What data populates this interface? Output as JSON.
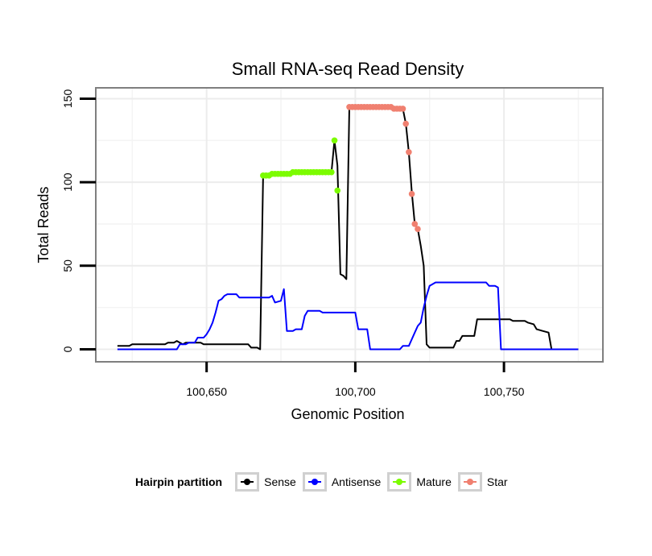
{
  "chart_data": {
    "type": "line",
    "title": "Small RNA-seq Read Density",
    "xlabel": "Genomic Position",
    "ylabel": "Total Reads",
    "xlim": [
      100613,
      100783
    ],
    "ylim": [
      -7,
      156
    ],
    "x_ticks": [
      100650,
      100700,
      100750
    ],
    "x_tick_labels": [
      "100,650",
      "100,700",
      "100,750"
    ],
    "y_ticks": [
      0,
      50,
      100,
      150
    ],
    "y_tick_labels": [
      "0",
      "50",
      "100",
      "150"
    ],
    "grid": true,
    "legend": {
      "title": "Hairpin partition",
      "position": "bottom",
      "entries": [
        {
          "name": "Sense",
          "color": "#000000"
        },
        {
          "name": "Antisense",
          "color": "#0000ff"
        },
        {
          "name": "Mature",
          "color": "#7cfc00"
        },
        {
          "name": "Star",
          "color": "#f08070"
        }
      ]
    },
    "series": [
      {
        "name": "Sense",
        "color": "#000000",
        "style": "line",
        "points": [
          [
            100620,
            2
          ],
          [
            100624,
            2
          ],
          [
            100625,
            3
          ],
          [
            100636,
            3
          ],
          [
            100637,
            4
          ],
          [
            100639,
            4
          ],
          [
            100640,
            5
          ],
          [
            100641,
            4
          ],
          [
            100642,
            3
          ],
          [
            100643,
            4
          ],
          [
            100645,
            4
          ],
          [
            100646,
            4
          ],
          [
            100648,
            4
          ],
          [
            100649,
            3
          ],
          [
            100664,
            3
          ],
          [
            100665,
            1
          ],
          [
            100667,
            1
          ],
          [
            100668,
            0
          ],
          [
            100669,
            104
          ],
          [
            100671,
            104
          ],
          [
            100672,
            105
          ],
          [
            100678,
            105
          ],
          [
            100679,
            106
          ],
          [
            100684,
            106
          ],
          [
            100686,
            106
          ],
          [
            100692,
            106
          ],
          [
            100693,
            125
          ],
          [
            100694,
            110
          ],
          [
            100695,
            45
          ],
          [
            100696,
            44
          ],
          [
            100697,
            42
          ],
          [
            100698,
            145
          ],
          [
            100704,
            145
          ],
          [
            100710,
            145
          ],
          [
            100714,
            145
          ],
          [
            100715,
            144
          ],
          [
            100716,
            144
          ],
          [
            100717,
            135
          ],
          [
            100718,
            118
          ],
          [
            100719,
            94
          ],
          [
            100720,
            75
          ],
          [
            100721,
            72
          ],
          [
            100722,
            62
          ],
          [
            100723,
            50
          ],
          [
            100724,
            3
          ],
          [
            100725,
            1
          ],
          [
            100733,
            1
          ],
          [
            100734,
            5
          ],
          [
            100735,
            5
          ],
          [
            100736,
            8
          ],
          [
            100740,
            8
          ],
          [
            100741,
            18
          ],
          [
            100752,
            18
          ],
          [
            100753,
            17
          ],
          [
            100757,
            17
          ],
          [
            100758,
            16
          ],
          [
            100760,
            15
          ],
          [
            100761,
            12
          ],
          [
            100763,
            11
          ],
          [
            100765,
            10
          ],
          [
            100766,
            0
          ],
          [
            100775,
            0
          ]
        ]
      },
      {
        "name": "Antisense",
        "color": "#0000ff",
        "style": "line",
        "points": [
          [
            100620,
            0
          ],
          [
            100640,
            0
          ],
          [
            100641,
            3
          ],
          [
            100643,
            3
          ],
          [
            100644,
            4
          ],
          [
            100646,
            4
          ],
          [
            100647,
            7
          ],
          [
            100649,
            7
          ],
          [
            100650,
            9
          ],
          [
            100651,
            12
          ],
          [
            100652,
            16
          ],
          [
            100653,
            22
          ],
          [
            100654,
            29
          ],
          [
            100655,
            30
          ],
          [
            100656,
            32
          ],
          [
            100657,
            33
          ],
          [
            100660,
            33
          ],
          [
            100661,
            31
          ],
          [
            100671,
            31
          ],
          [
            100672,
            32
          ],
          [
            100673,
            28
          ],
          [
            100675,
            29
          ],
          [
            100676,
            36
          ],
          [
            100677,
            11
          ],
          [
            100679,
            11
          ],
          [
            100680,
            12
          ],
          [
            100682,
            12
          ],
          [
            100683,
            20
          ],
          [
            100684,
            23
          ],
          [
            100688,
            23
          ],
          [
            100689,
            22
          ],
          [
            100700,
            22
          ],
          [
            100701,
            12
          ],
          [
            100704,
            12
          ],
          [
            100705,
            0
          ],
          [
            100715,
            0
          ],
          [
            100716,
            2
          ],
          [
            100718,
            2
          ],
          [
            100719,
            6
          ],
          [
            100720,
            10
          ],
          [
            100721,
            14
          ],
          [
            100722,
            16
          ],
          [
            100723,
            25
          ],
          [
            100724,
            32
          ],
          [
            100725,
            38
          ],
          [
            100726,
            39
          ],
          [
            100727,
            40
          ],
          [
            100744,
            40
          ],
          [
            100745,
            38
          ],
          [
            100747,
            38
          ],
          [
            100748,
            37
          ],
          [
            100749,
            0
          ],
          [
            100775,
            0
          ]
        ]
      },
      {
        "name": "Mature",
        "color": "#7cfc00",
        "style": "points",
        "points": [
          [
            100669,
            104
          ],
          [
            100670,
            104
          ],
          [
            100671,
            104
          ],
          [
            100672,
            105
          ],
          [
            100673,
            105
          ],
          [
            100674,
            105
          ],
          [
            100675,
            105
          ],
          [
            100676,
            105
          ],
          [
            100677,
            105
          ],
          [
            100678,
            105
          ],
          [
            100679,
            106
          ],
          [
            100680,
            106
          ],
          [
            100681,
            106
          ],
          [
            100682,
            106
          ],
          [
            100683,
            106
          ],
          [
            100684,
            106
          ],
          [
            100685,
            106
          ],
          [
            100686,
            106
          ],
          [
            100687,
            106
          ],
          [
            100688,
            106
          ],
          [
            100689,
            106
          ],
          [
            100690,
            106
          ],
          [
            100691,
            106
          ],
          [
            100692,
            106
          ],
          [
            100693,
            125
          ],
          [
            100694,
            95
          ]
        ]
      },
      {
        "name": "Star",
        "color": "#f08070",
        "style": "points",
        "points": [
          [
            100698,
            145
          ],
          [
            100699,
            145
          ],
          [
            100700,
            145
          ],
          [
            100701,
            145
          ],
          [
            100702,
            145
          ],
          [
            100703,
            145
          ],
          [
            100704,
            145
          ],
          [
            100705,
            145
          ],
          [
            100706,
            145
          ],
          [
            100707,
            145
          ],
          [
            100708,
            145
          ],
          [
            100709,
            145
          ],
          [
            100710,
            145
          ],
          [
            100711,
            145
          ],
          [
            100712,
            145
          ],
          [
            100713,
            144
          ],
          [
            100714,
            144
          ],
          [
            100715,
            144
          ],
          [
            100716,
            144
          ],
          [
            100717,
            135
          ],
          [
            100718,
            118
          ],
          [
            100719,
            93
          ],
          [
            100720,
            75
          ],
          [
            100721,
            72
          ]
        ]
      }
    ]
  }
}
